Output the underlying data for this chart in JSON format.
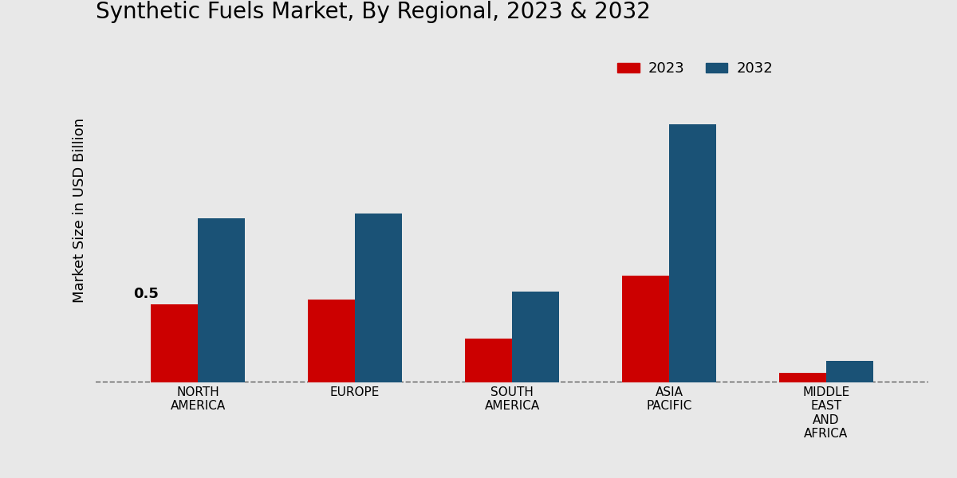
{
  "title": "Synthetic Fuels Market, By Regional, 2023 & 2032",
  "ylabel": "Market Size in USD Billion",
  "categories": [
    "NORTH\nAMERICA",
    "EUROPE",
    "SOUTH\nAMERICA",
    "ASIA\nPACIFIC",
    "MIDDLE\nEAST\nAND\nAFRICA"
  ],
  "values_2023": [
    0.5,
    0.53,
    0.28,
    0.68,
    0.06
  ],
  "values_2032": [
    1.05,
    1.08,
    0.58,
    1.65,
    0.14
  ],
  "color_2023": "#CC0000",
  "color_2032": "#1A5276",
  "bar_width": 0.3,
  "annotation_text": "0.5",
  "background_color": "#E8E8E8",
  "legend_labels": [
    "2023",
    "2032"
  ],
  "ylim": [
    0,
    2.2
  ],
  "title_fontsize": 20,
  "axis_label_fontsize": 13,
  "tick_fontsize": 11,
  "legend_fontsize": 13
}
